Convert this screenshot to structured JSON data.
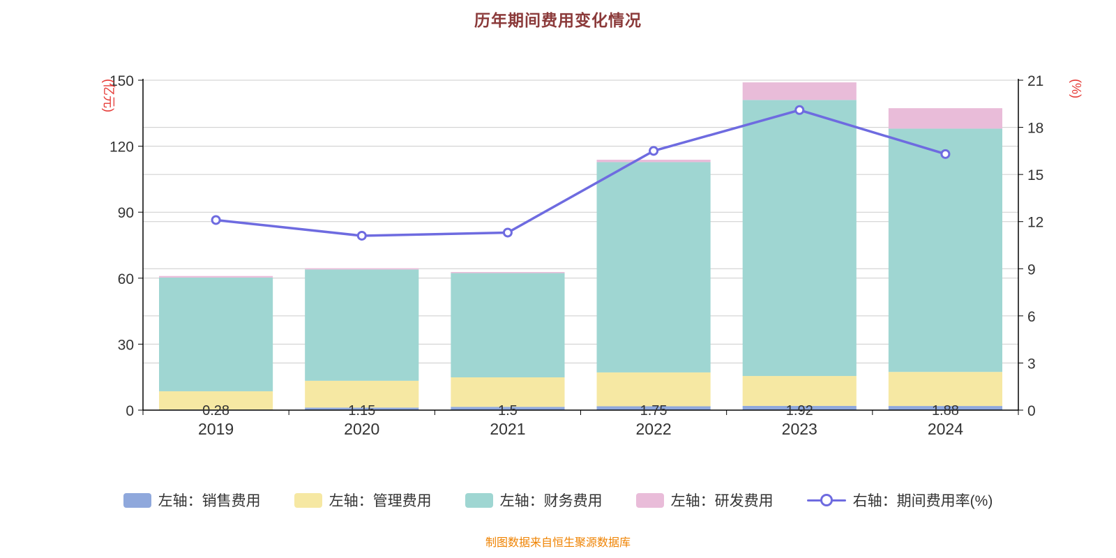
{
  "chart_data": {
    "type": "bar-line-combo",
    "title": "历年期间费用变化情况",
    "caption": "制图数据来自恒生聚源数据库",
    "categories": [
      "2019",
      "2020",
      "2021",
      "2022",
      "2023",
      "2024"
    ],
    "bar_series": [
      {
        "name": "左轴：销售费用",
        "color": "#8fa8dc",
        "values": [
          0.28,
          1.15,
          1.5,
          1.75,
          1.92,
          1.88
        ]
      },
      {
        "name": "左轴：管理费用",
        "color": "#f6e8a3",
        "values": [
          8.3,
          12.2,
          13.4,
          15.4,
          13.6,
          15.5
        ]
      },
      {
        "name": "左轴：财务费用",
        "color": "#9fd6d2",
        "values": [
          51.7,
          50.6,
          47.4,
          95.6,
          125.5,
          110.6
        ]
      },
      {
        "name": "左轴：研发费用",
        "color": "#e9bcd9",
        "values": [
          0.7,
          0.55,
          0.5,
          1.1,
          8.0,
          9.3
        ]
      }
    ],
    "line_series": {
      "name": "右轴：期间费用率(%)",
      "color": "#6e6be0",
      "values": [
        12.1,
        11.1,
        11.3,
        16.5,
        19.1,
        16.3
      ]
    },
    "bar_labels": [
      "0.28",
      "1.15",
      "1.5",
      "1.75",
      "1.92",
      "1.88"
    ],
    "left_axis": {
      "label": "(亿元)",
      "min": 0,
      "max": 150,
      "ticks": [
        0,
        30,
        60,
        90,
        120,
        150
      ]
    },
    "right_axis": {
      "label": "(%)",
      "min": 0,
      "max": 21,
      "ticks": [
        0,
        3,
        6,
        9,
        12,
        15,
        18,
        21
      ]
    },
    "legend_position": "bottom",
    "grid": true,
    "colors": {
      "grid": "#cccccc",
      "axis": "#000000",
      "tick_text": "#333333",
      "bar_label_text": "#333333",
      "axis_name": "#e53935",
      "title": "#8b3a3a",
      "caption": "#ef8200"
    }
  }
}
